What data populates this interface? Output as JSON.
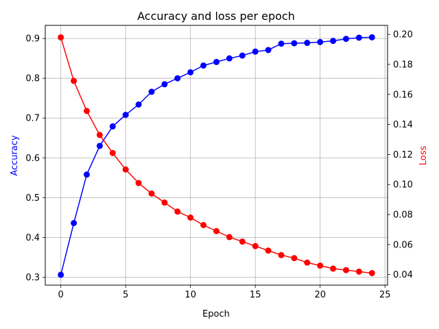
{
  "chart_data": {
    "type": "line",
    "title": "Accuracy and loss per epoch",
    "xlabel": "Epoch",
    "x": [
      0,
      1,
      2,
      3,
      4,
      5,
      6,
      7,
      8,
      9,
      10,
      11,
      12,
      13,
      14,
      15,
      16,
      17,
      18,
      19,
      20,
      21,
      22,
      23,
      24
    ],
    "xlim": [
      -1.2,
      25.2
    ],
    "xticks": [
      0,
      5,
      10,
      15,
      20,
      25
    ],
    "grid": true,
    "axes": {
      "left": {
        "label": "Accuracy",
        "color": "#0000ff",
        "lim": [
          0.28,
          0.933
        ],
        "ticks": [
          0.3,
          0.4,
          0.5,
          0.6,
          0.7,
          0.8,
          0.9
        ],
        "tick_labels": [
          "0.3",
          "0.4",
          "0.5",
          "0.6",
          "0.7",
          "0.8",
          "0.9"
        ]
      },
      "right": {
        "label": "Loss",
        "color": "#ff0000",
        "lim": [
          0.033,
          0.206
        ],
        "ticks": [
          0.04,
          0.06,
          0.08,
          0.1,
          0.12,
          0.14,
          0.16,
          0.18,
          0.2
        ],
        "tick_labels": [
          "0.04",
          "0.06",
          "0.08",
          "0.10",
          "0.12",
          "0.14",
          "0.16",
          "0.18",
          "0.20"
        ]
      }
    },
    "xtick_labels": [
      "0",
      "5",
      "10",
      "15",
      "20",
      "25"
    ],
    "series": [
      {
        "axis": "left",
        "color": "#0000ff",
        "marker": "circle",
        "values": [
          0.306,
          0.436,
          0.558,
          0.63,
          0.679,
          0.708,
          0.734,
          0.766,
          0.785,
          0.8,
          0.815,
          0.832,
          0.841,
          0.85,
          0.857,
          0.867,
          0.871,
          0.887,
          0.888,
          0.889,
          0.891,
          0.894,
          0.899,
          0.902,
          0.903
        ]
      },
      {
        "axis": "right",
        "color": "#ff0000",
        "marker": "circle",
        "values": [
          0.198,
          0.169,
          0.149,
          0.133,
          0.121,
          0.11,
          0.101,
          0.094,
          0.088,
          0.082,
          0.078,
          0.073,
          0.069,
          0.065,
          0.062,
          0.059,
          0.056,
          0.053,
          0.051,
          0.048,
          0.046,
          0.044,
          0.043,
          0.042,
          0.041
        ]
      }
    ]
  }
}
